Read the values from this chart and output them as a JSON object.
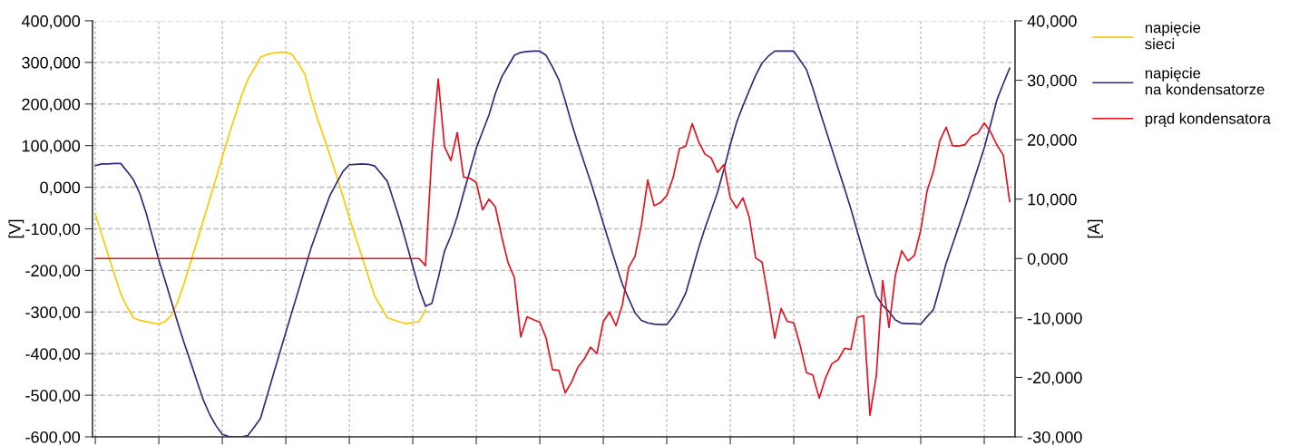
{
  "chart_data": {
    "type": "line",
    "ylabel": "[V]",
    "y2label": "[A]",
    "categories": [
      null,
      null,
      null,
      null,
      null,
      null,
      null,
      null,
      null,
      null,
      null,
      null,
      null,
      null,
      null,
      null,
      null,
      null,
      null,
      null,
      null,
      null,
      null,
      null,
      null,
      null,
      null,
      null,
      null,
      null,
      null,
      null,
      null,
      null,
      null,
      null,
      null,
      null,
      null,
      null,
      null,
      null,
      null,
      null,
      null,
      null,
      null,
      null,
      null,
      null,
      null,
      null,
      null,
      null,
      null,
      null,
      null,
      null,
      null,
      null,
      null,
      null,
      null,
      null,
      null,
      null,
      null,
      null,
      null,
      null,
      null,
      null,
      null,
      null,
      null,
      null,
      null,
      null,
      null,
      null,
      null,
      null,
      null,
      null,
      null,
      null,
      null,
      null,
      null,
      null,
      null,
      null,
      null,
      null,
      null,
      null,
      null,
      null,
      null,
      null,
      null,
      null,
      null,
      null,
      null,
      null,
      null,
      null,
      null,
      null,
      null,
      null,
      null,
      null,
      null,
      null,
      null,
      null,
      null,
      null,
      null,
      null,
      null,
      null,
      null,
      null,
      null,
      null,
      null,
      null,
      null,
      null,
      null,
      null,
      null,
      null,
      null,
      null,
      null,
      null,
      null,
      null,
      null,
      null,
      null
    ],
    "ylim": [
      -600,
      400
    ],
    "yticks": [
      {
        "value": 400,
        "label": "400,000"
      },
      {
        "value": 300,
        "label": "300,000"
      },
      {
        "value": 200,
        "label": "200,000"
      },
      {
        "value": 100,
        "label": "100,000"
      },
      {
        "value": 0,
        "label": "0,000"
      },
      {
        "value": -100,
        "label": "-100,00"
      },
      {
        "value": -200,
        "label": "-200,00"
      },
      {
        "value": -300,
        "label": "-300,00"
      },
      {
        "value": -400,
        "label": "-400,00"
      },
      {
        "value": -500,
        "label": "-500,00"
      },
      {
        "value": -600,
        "label": "-600,00"
      }
    ],
    "y2lim": [
      -30,
      40
    ],
    "y2ticks": [
      {
        "value": 40,
        "label": "40,000"
      },
      {
        "value": 30,
        "label": "30,000"
      },
      {
        "value": 20,
        "label": "20,000"
      },
      {
        "value": 10,
        "label": "10,000"
      },
      {
        "value": 0,
        "label": "0,000"
      },
      {
        "value": -10,
        "label": "-10,000"
      },
      {
        "value": -20,
        "label": "-20,000"
      },
      {
        "value": -30,
        "label": "-30,000"
      }
    ],
    "tick_labels": "y",
    "grid": true,
    "legend": "right",
    "marker": "none",
    "line_style": "solid",
    "series": [
      {
        "name": "napięcie\nsieci",
        "color": "#ffc800",
        "values": [
          -65,
          -113,
          -161,
          -209,
          -256,
          -288,
          -314,
          -320,
          -323,
          -326,
          -329,
          -323,
          -307,
          -274,
          -230,
          -181,
          -131,
          -80,
          -30,
          21,
          73,
          123,
          171,
          219,
          258,
          285,
          312,
          319,
          323,
          324,
          325,
          319,
          296,
          272,
          214,
          164,
          120,
          74,
          27,
          -22,
          -73,
          -120,
          -167,
          -215,
          -262,
          -288,
          -314,
          -319,
          -324,
          -328,
          -325,
          -323,
          -295,
          null,
          null,
          null,
          null,
          null,
          null,
          null,
          null,
          null,
          null,
          null,
          null,
          null,
          null,
          null,
          null,
          null,
          null,
          null,
          null,
          null,
          null,
          null,
          null,
          null,
          null,
          null,
          null,
          null,
          null,
          null,
          null,
          null,
          null,
          null,
          null,
          null,
          null,
          null,
          null,
          null,
          null,
          null,
          null,
          null,
          null,
          null,
          null,
          null,
          null,
          null,
          null,
          null,
          null,
          null,
          null,
          null,
          null,
          null,
          null,
          null,
          null,
          null,
          null,
          null,
          null,
          null,
          null,
          null,
          null,
          null,
          null,
          null,
          null,
          null,
          null,
          null,
          null,
          null,
          null,
          null,
          null,
          null,
          null,
          null,
          null,
          null,
          null,
          null,
          null,
          null,
          null
        ]
      },
      {
        "name": "napięcie\nna kondensatorze",
        "color": "#2e2a7e",
        "values": [
          52,
          56,
          56,
          57,
          57,
          38,
          18,
          -15,
          -62,
          -119,
          -175,
          -225,
          -276,
          -327,
          -375,
          -420,
          -466,
          -511,
          -546,
          -573,
          -594,
          -599,
          -600,
          -600,
          -597,
          -577,
          -556,
          -504,
          -452,
          -400,
          -349,
          -298,
          -247,
          -196,
          -145,
          -102,
          -59,
          -18,
          10,
          38,
          54,
          55,
          56,
          55,
          51,
          33,
          14,
          -33,
          -81,
          -135,
          -190,
          -244,
          -286,
          -279,
          -219,
          -153,
          -117,
          -70,
          -14,
          40,
          94,
          134,
          174,
          225,
          265,
          291,
          317,
          324,
          326,
          327,
          327,
          317,
          289,
          258,
          208,
          154,
          105,
          59,
          13,
          -36,
          -87,
          -136,
          -185,
          -233,
          -268,
          -302,
          -320,
          -326,
          -329,
          -330,
          -330,
          -311,
          -285,
          -254,
          -201,
          -147,
          -99,
          -56,
          -12,
          43,
          102,
          156,
          196,
          233,
          269,
          298,
          315,
          327,
          327,
          327,
          327,
          305,
          283,
          238,
          188,
          140,
          92,
          44,
          -3,
          -52,
          -106,
          -159,
          -211,
          -261,
          -284,
          -299,
          -319,
          -327,
          -328,
          -328,
          -329,
          -311,
          -294,
          -240,
          -183,
          -138,
          -93,
          -48,
          -1,
          47,
          95,
          151,
          210,
          249,
          286
        ]
      },
      {
        "name": "prąd kondensatora",
        "color": "#e8101e",
        "axis": "y2",
        "values": [
          0,
          0,
          0,
          0,
          0,
          0,
          0,
          0,
          0,
          0,
          0,
          0,
          0,
          0,
          0,
          0,
          0,
          0,
          0,
          0,
          0,
          0,
          0,
          0,
          0,
          0,
          0,
          0,
          0,
          0,
          0,
          0,
          0,
          0,
          0,
          0,
          0,
          0,
          0,
          0,
          0,
          0,
          0,
          0,
          0,
          0,
          0,
          0,
          0,
          0,
          0,
          0,
          -1.2,
          17.7,
          30.2,
          18.8,
          16.5,
          21.2,
          13.7,
          13.5,
          12.8,
          8.2,
          10,
          8.7,
          3.7,
          -0.7,
          -3.2,
          -13.2,
          -9.8,
          -10.3,
          -10.7,
          -13.4,
          -18.7,
          -18.8,
          -22.6,
          -20.8,
          -18.3,
          -16.9,
          -14.9,
          -16,
          -10.6,
          -9,
          -11.3,
          -7.8,
          -1.5,
          0.4,
          5.7,
          13.2,
          8.9,
          9.4,
          10.6,
          13.6,
          18.5,
          18.9,
          22.7,
          19.7,
          17.6,
          16.9,
          14.5,
          15.8,
          10.2,
          8.5,
          10.2,
          6.9,
          0.1,
          -0.6,
          -6.7,
          -13.4,
          -8.4,
          -10.6,
          -10.8,
          -14.6,
          -19.2,
          -19.6,
          -23.5,
          -20.1,
          -17.7,
          -17,
          -15.1,
          -15.3,
          -9.9,
          -9.6,
          -26.4,
          -19.7,
          -3.7,
          -11.6,
          -2.8,
          1.3,
          -0.4,
          0.5,
          4.8,
          11.4,
          14.7,
          19.8,
          22.1,
          19,
          18.9,
          19.2,
          20.6,
          21.1,
          22.8,
          21.3,
          19.1,
          17.4,
          9.6
        ]
      }
    ]
  }
}
